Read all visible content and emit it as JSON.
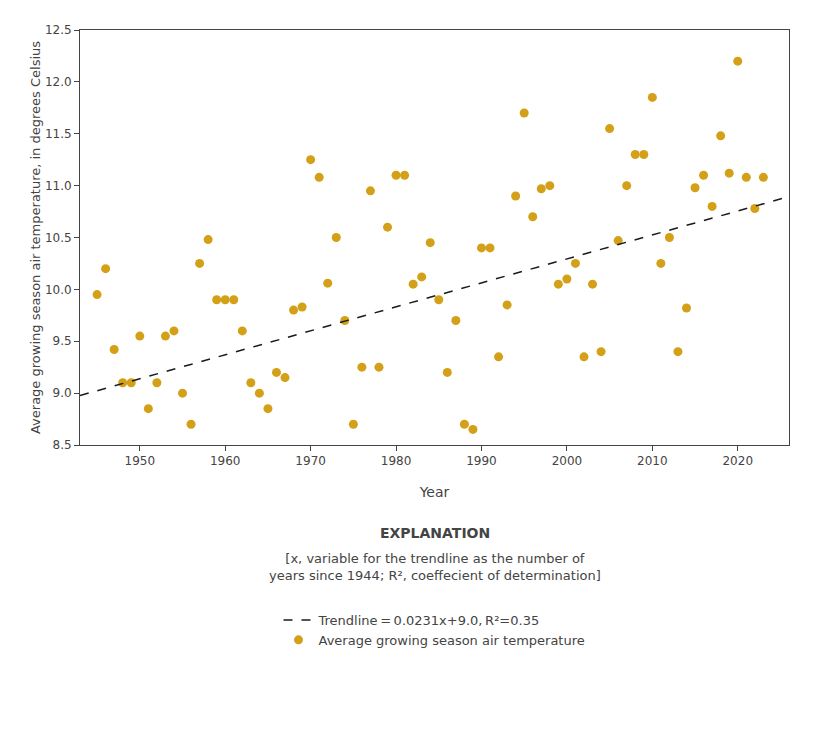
{
  "chart_data": {
    "type": "scatter",
    "xlabel": "Year",
    "ylabel": "Average growing season air temperature, in degrees Celsius",
    "xlim": [
      1943,
      2026
    ],
    "ylim": [
      8.5,
      12.5
    ],
    "xticks": [
      1950,
      1960,
      1970,
      1980,
      1990,
      2000,
      2010,
      2020
    ],
    "yticks": [
      8.5,
      {
        "value": 9,
        "label": "9.0"
      },
      9.5,
      {
        "value": 10,
        "label": "10.0"
      },
      10.5,
      {
        "value": 11,
        "label": "11.0"
      },
      11.5,
      {
        "value": 12,
        "label": "12.0"
      },
      12.5
    ],
    "grid": false,
    "legend": "bottom",
    "annotations": [
      "EXPLANATION",
      "[x, variable for the trendline as the number of\nyears since 1944; R², coeffecient of determination]"
    ],
    "series": [
      {
        "name": "Average growing season air temperature",
        "type": "scatter",
        "marker": "circle",
        "color": "#D4A017",
        "x": [
          1945,
          1946,
          1947,
          1948,
          1949,
          1950,
          1951,
          1952,
          1953,
          1954,
          1955,
          1956,
          1957,
          1958,
          1959,
          1960,
          1961,
          1962,
          1963,
          1964,
          1965,
          1966,
          1967,
          1968,
          1969,
          1970,
          1971,
          1972,
          1973,
          1974,
          1975,
          1976,
          1977,
          1978,
          1979,
          1980,
          1981,
          1982,
          1983,
          1984,
          1985,
          1986,
          1987,
          1988,
          1989,
          1990,
          1991,
          1992,
          1993,
          1994,
          1995,
          1996,
          1997,
          1998,
          1999,
          2000,
          2001,
          2002,
          2003,
          2004,
          2005,
          2006,
          2007,
          2008,
          2009,
          2010,
          2011,
          2012,
          2013,
          2014,
          2015,
          2016,
          2017,
          2018,
          2019,
          2020,
          2021,
          2022,
          2023
        ],
        "values": [
          9.95,
          10.2,
          9.42,
          9.1,
          9.1,
          9.55,
          8.85,
          9.1,
          9.55,
          9.6,
          9.0,
          8.7,
          10.25,
          10.48,
          9.9,
          9.9,
          9.9,
          9.6,
          9.1,
          9.0,
          8.85,
          9.2,
          9.15,
          9.8,
          9.83,
          11.25,
          11.08,
          10.06,
          10.5,
          9.7,
          8.7,
          9.25,
          10.95,
          9.25,
          10.6,
          11.1,
          11.1,
          10.05,
          10.12,
          10.45,
          9.9,
          9.2,
          9.7,
          8.7,
          8.65,
          10.4,
          10.4,
          9.35,
          9.85,
          10.9,
          11.7,
          10.7,
          10.97,
          11.0,
          10.05,
          10.1,
          10.25,
          9.35,
          10.05,
          9.4,
          11.55,
          10.47,
          11.0,
          11.3,
          11.3,
          11.85,
          10.25,
          10.5,
          9.4,
          9.82,
          10.98,
          11.1,
          10.8,
          11.48,
          11.12,
          12.2,
          11.08,
          10.78,
          11.08
        ]
      },
      {
        "name": "Trendline = 0.0231x+9.0, R²=0.35",
        "type": "line",
        "line_style": "dashed",
        "color": "#1a1a1a",
        "x": [
          1943,
          2026
        ],
        "values": [
          8.9769,
          10.8942
        ]
      }
    ]
  }
}
